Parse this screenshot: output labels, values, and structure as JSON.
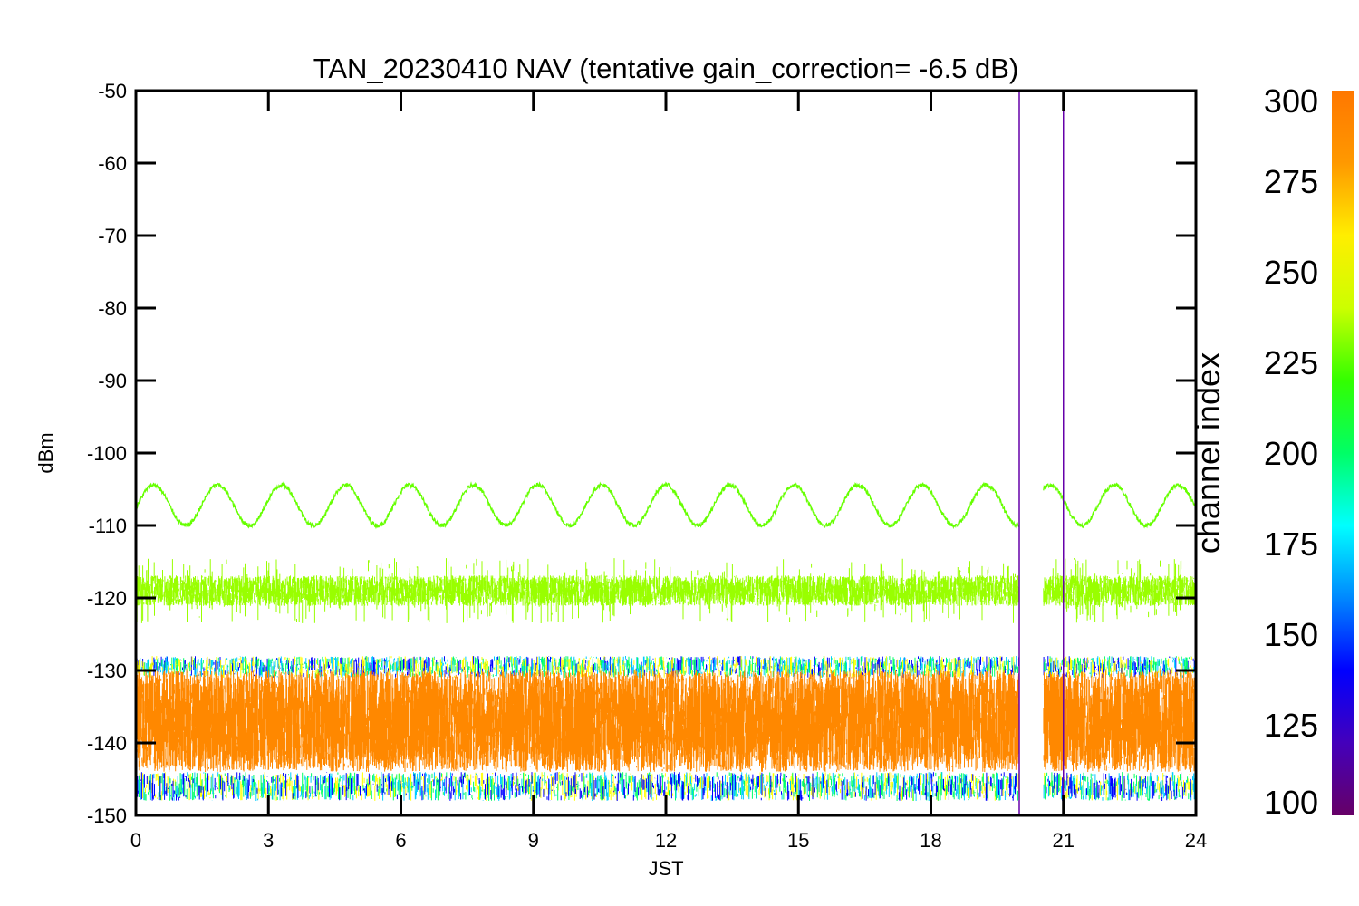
{
  "chart_data": {
    "type": "line",
    "title": "TAN_20230410 NAV (tentative gain_correction= -6.5 dB)",
    "xlabel": "JST",
    "ylabel": "dBm",
    "xlim": [
      0,
      24
    ],
    "ylim": [
      -150,
      -50
    ],
    "x_ticks": [
      0,
      3,
      6,
      9,
      12,
      15,
      18,
      21,
      24
    ],
    "y_ticks": [
      -50,
      -60,
      -70,
      -80,
      -90,
      -100,
      -110,
      -120,
      -130,
      -140,
      -150
    ],
    "data_gap_hours": [
      20.0,
      20.55
    ],
    "series": [
      {
        "description": "sinusoidal strong channel",
        "color": "#66ff00",
        "center_dBm": -107.2,
        "amplitude_dBm": 2.8,
        "period_hours": 1.45,
        "peak_hours": [
          0.4,
          1.8,
          3.2,
          4.65,
          6.1,
          7.55,
          9.0,
          10.45,
          11.9,
          13.35,
          14.8,
          16.25,
          17.7,
          19.15,
          21.3,
          22.5,
          23.7
        ],
        "trough_hours": [
          1.1,
          2.5,
          3.95,
          5.4,
          6.85,
          8.3,
          9.75,
          11.2,
          12.65,
          14.1,
          15.55,
          17.0,
          18.45,
          19.85,
          20.7,
          21.85,
          23.05
        ]
      },
      {
        "description": "noisy band",
        "color": "#99ff00",
        "center_dBm": -119,
        "range_dBm": [
          -128,
          -114
        ]
      },
      {
        "description": "noise floor upper spread",
        "colors": [
          "#0000ff",
          "#00ccff",
          "#00ff66",
          "#ffff00"
        ],
        "range_dBm": [
          -131,
          -128
        ]
      },
      {
        "description": "noise floor main band",
        "color": "#ff8800",
        "center_dBm": -137,
        "range_dBm": [
          -144,
          -130
        ]
      },
      {
        "description": "noise floor lower spread",
        "colors": [
          "#ffff00",
          "#00ff66",
          "#00ccff",
          "#0000ff"
        ],
        "range_dBm": [
          -148,
          -144
        ]
      }
    ],
    "spikes": [
      {
        "x": 20.0,
        "from_dBm": -150,
        "to_dBm": -50,
        "color": "#6600aa"
      },
      {
        "x": 21.0,
        "from_dBm": -150,
        "to_dBm": -52,
        "color": "#6600aa"
      }
    ],
    "colorbar": {
      "label": "channel index",
      "range": [
        100,
        300
      ],
      "ticks": [
        100,
        125,
        150,
        175,
        200,
        225,
        250,
        275,
        300
      ],
      "colors": [
        "#660066",
        "#4400bb",
        "#0000ff",
        "#0088ff",
        "#00ffff",
        "#00ff66",
        "#33ff00",
        "#ccff00",
        "#ffee00",
        "#ff9900",
        "#ff7700"
      ]
    }
  }
}
